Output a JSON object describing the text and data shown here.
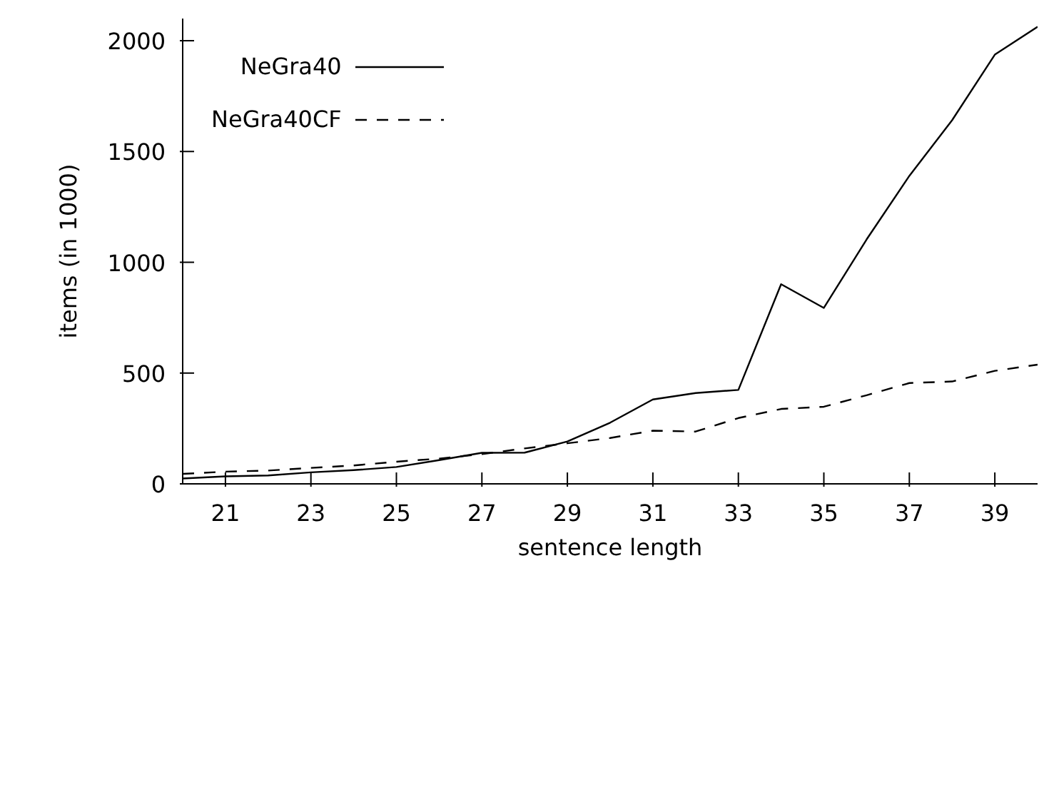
{
  "chart_data": {
    "type": "line",
    "xlabel": "sentence length",
    "ylabel": "items (in 1000)",
    "x": [
      20,
      21,
      22,
      23,
      24,
      25,
      26,
      27,
      28,
      29,
      30,
      31,
      32,
      33,
      34,
      35,
      36,
      37,
      38,
      39,
      40
    ],
    "series": [
      {
        "name": "NeGra40",
        "color": "#000000",
        "line_style": "solid",
        "values": [
          24,
          34,
          38,
          52,
          62,
          76,
          107,
          140,
          141,
          191,
          276,
          381,
          410,
          424,
          901,
          794,
          1103,
          1390,
          1641,
          1937,
          2063
        ]
      },
      {
        "name": "NeGra40CF",
        "color": "#000000",
        "line_style": "dashed",
        "values": [
          45,
          55,
          60,
          72,
          83,
          100,
          114,
          134,
          160,
          183,
          207,
          240,
          236,
          297,
          338,
          348,
          400,
          455,
          462,
          510,
          538
        ]
      }
    ],
    "xlim": [
      20,
      40
    ],
    "xticks": [
      21,
      23,
      25,
      27,
      29,
      31,
      33,
      35,
      37,
      39
    ],
    "ylim": [
      0,
      2100
    ],
    "yticks": [
      0,
      500,
      1000,
      1500,
      2000
    ],
    "grid": false,
    "legend": "top left",
    "marker": "none"
  }
}
